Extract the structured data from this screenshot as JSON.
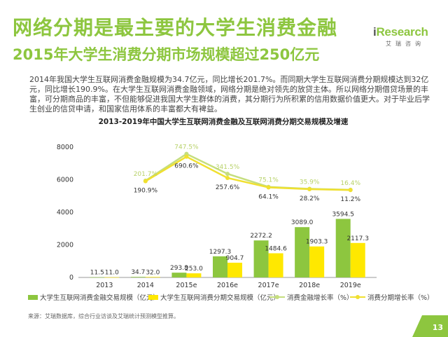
{
  "header": {
    "title": "网络分期是最主要的大学生消费金融",
    "subtitle": "2015年大学生消费分期市场规模超过250亿元"
  },
  "logo": {
    "word_i": "i",
    "word_rest": "Research",
    "cn": "艾瑞咨询"
  },
  "body_text": "2014年我国大学生互联网消费金融规模为34.7亿元，同比增长201.7%。而同期大学生互联网消费分期规模达到32亿元，同比增长190.9%。在大学生互联网消费金融领域，网络分期是绝对领先的放贷主体。所以网络分期借贷场景的丰富，可分期商品的丰富，不但能够促进我国大学生群体的消费，其分期行为所积累的信用数据价值更大。对于毕业后学生创业的信贷申请，和国家信用体系的丰富都大有裨益。",
  "legend": {
    "bar1": "大学生互联网消费金融交易规模（亿元）",
    "bar2": "大学生互联网消费分期交易规模（亿元）",
    "line1": "消费金融增长率（%）",
    "line2": "消费分期增长率（%）"
  },
  "source": "来源：艾瑞数据库，综合行业访谈及艾瑞统计预测模型推算。",
  "page_number": "13",
  "colors": {
    "green": "#8dc63f",
    "yellow": "#ffe800",
    "line_green": "#c5de7e",
    "line_yellow": "#f0e030"
  },
  "chart_data": {
    "type": "bar",
    "title": "2013-2019年中国大学生互联网消费金融及互联网消费分期交易规模及增速",
    "categories": [
      "2013",
      "2014",
      "2015e",
      "2016e",
      "2017e",
      "2018e",
      "2019e"
    ],
    "series": [
      {
        "name": "大学生互联网消费金融交易规模（亿元）",
        "values": [
          11.5,
          34.7,
          293.8,
          1297.3,
          2272.2,
          3089.0,
          3594.5
        ],
        "labels": [
          "11.5",
          "34.7",
          "293.8",
          "1297.3",
          "2272.2",
          "3089.0",
          "3594.5"
        ]
      },
      {
        "name": "大学生互联网消费分期交易规模（亿元）",
        "values": [
          11.0,
          32.0,
          253.0,
          904.7,
          1484.6,
          1903.3,
          2117.3
        ],
        "labels": [
          "11.0",
          "32.0",
          "253.0",
          "904.7",
          "1484.6",
          "1903.3",
          "2117.3"
        ]
      }
    ],
    "lines": [
      {
        "name": "消费金融增长率（%）",
        "values": [
          null,
          201.7,
          747.5,
          341.5,
          75.1,
          35.9,
          16.4
        ],
        "labels": [
          "",
          "201.7%",
          "747.5%",
          "341.5%",
          "75.1%",
          "35.9%",
          "16.4%"
        ]
      },
      {
        "name": "消费分期增长率（%）",
        "values": [
          null,
          190.9,
          690.6,
          257.6,
          64.1,
          28.2,
          11.2
        ],
        "labels": [
          "",
          "190.9%",
          "690.6%",
          "257.6%",
          "64.1%",
          "28.2%",
          "11.2%"
        ]
      }
    ],
    "y_ticks": [
      "0",
      "2000",
      "4000",
      "6000",
      "8000"
    ],
    "ylim": [
      0,
      8000
    ]
  }
}
